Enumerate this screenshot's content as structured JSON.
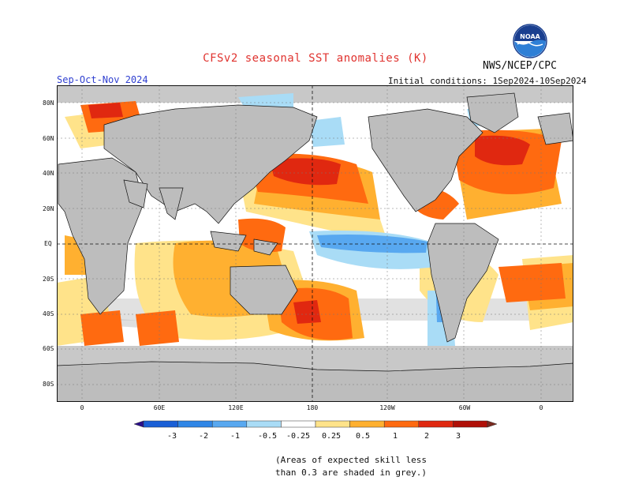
{
  "header": {
    "title": "CFSv2 seasonal SST anomalies (K)",
    "agency": "NWS/NCEP/CPC",
    "season": "Sep-Oct-Nov 2024",
    "initial_conditions": "Initial conditions: 1Sep2024-10Sep2024",
    "logo_text": "NOAA"
  },
  "map": {
    "lat_labels": [
      "80N",
      "60N",
      "40N",
      "20N",
      "EQ",
      "20S",
      "40S",
      "60S",
      "80S"
    ],
    "lon_labels": [
      "0",
      "60E",
      "120E",
      "180",
      "120W",
      "60W",
      "0"
    ]
  },
  "colorbar": {
    "ticks": [
      "-3",
      "-2",
      "-1",
      "-0.5",
      "-0.25",
      "0.25",
      "0.5",
      "1",
      "2",
      "3"
    ],
    "colors": [
      "#2a0f8a",
      "#1a5fd6",
      "#2f86e6",
      "#58a8f0",
      "#a9dcf6",
      "#ffffff",
      "#ffe38a",
      "#ffb030",
      "#ff6a10",
      "#e02810",
      "#b01008",
      "#7a2a20"
    ]
  },
  "note": {
    "line1": "(Areas of expected skill less",
    "line2": "than 0.3 are shaded in grey.)"
  },
  "colors": {
    "title": "#e0332f",
    "season": "#2f3fd0",
    "land": "#bdbdbd",
    "no_skill": "#c8c8c8"
  }
}
